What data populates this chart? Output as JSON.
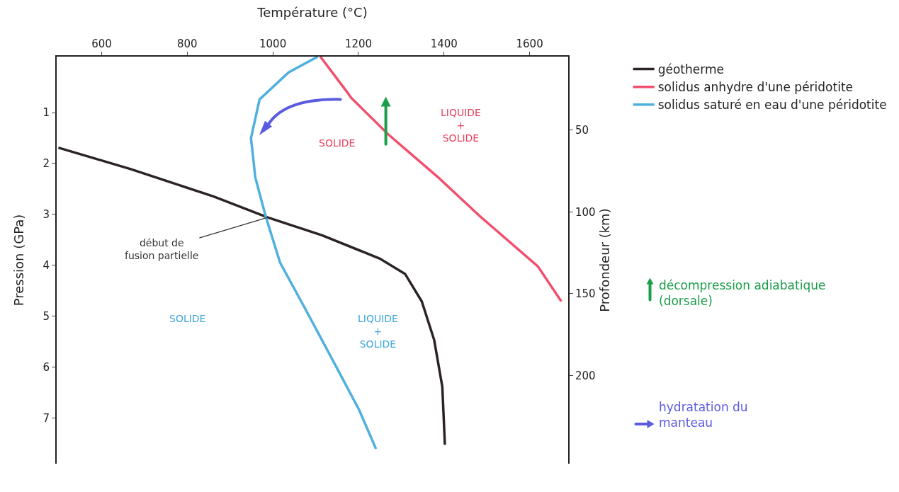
{
  "chart_data": {
    "type": "line",
    "xlabel": "Température (°C)",
    "ylabel": "Pression (GPa)",
    "y2label": "Profondeur (km)",
    "xlim": [
      495,
      1690
    ],
    "xticks": [
      600,
      800,
      1000,
      1200,
      1400,
      1600
    ],
    "ylim": [
      7.9,
      -0.1
    ],
    "yticks": [
      1,
      2,
      3,
      4,
      5,
      6,
      7
    ],
    "y2lim": [
      254,
      5
    ],
    "y2ticks": [
      50,
      100,
      150,
      200
    ],
    "grid": false,
    "legend": "right",
    "marker": "none",
    "line_style": "solid",
    "series": [
      {
        "name": "géotherme",
        "color": "#2b2326",
        "x": [
          499,
          668,
          862,
          988,
          1115,
          1250,
          1309,
          1348,
          1377,
          1396,
          1402
        ],
        "values": [
          1.69,
          2.11,
          2.65,
          3.06,
          3.41,
          3.87,
          4.17,
          4.71,
          5.47,
          6.39,
          7.53
        ]
      },
      {
        "name": "solidus anhydre d'une péridotite",
        "color": "#f0506e",
        "x": [
          1111,
          1173,
          1183,
          1270,
          1386,
          1483,
          1619,
          1674
        ],
        "values": [
          -0.1,
          0.59,
          0.71,
          1.43,
          2.27,
          3.03,
          4.02,
          4.71
        ]
      },
      {
        "name": "solidus saturé en eau d'une péridotite",
        "color": "#4fb0e0",
        "x": [
          1105,
          1037,
          969,
          949,
          959,
          983,
          1017,
          1076,
          1144,
          1202,
          1241
        ],
        "values": [
          -0.1,
          0.21,
          0.74,
          1.5,
          2.27,
          3.03,
          3.95,
          4.86,
          5.93,
          6.85,
          7.61
        ]
      }
    ],
    "annotations": [
      "SOLIDE",
      "LIQUIDE\n+\nSOLIDE",
      "SOLIDE",
      "LIQUIDE\n+\nSOLIDE",
      {
        "text": "début de\nfusion partielle",
        "x": 988,
        "y": 3.06
      },
      "décompression adiabatique\n(dorsale)",
      "hydratation du\nmanteau"
    ]
  }
}
